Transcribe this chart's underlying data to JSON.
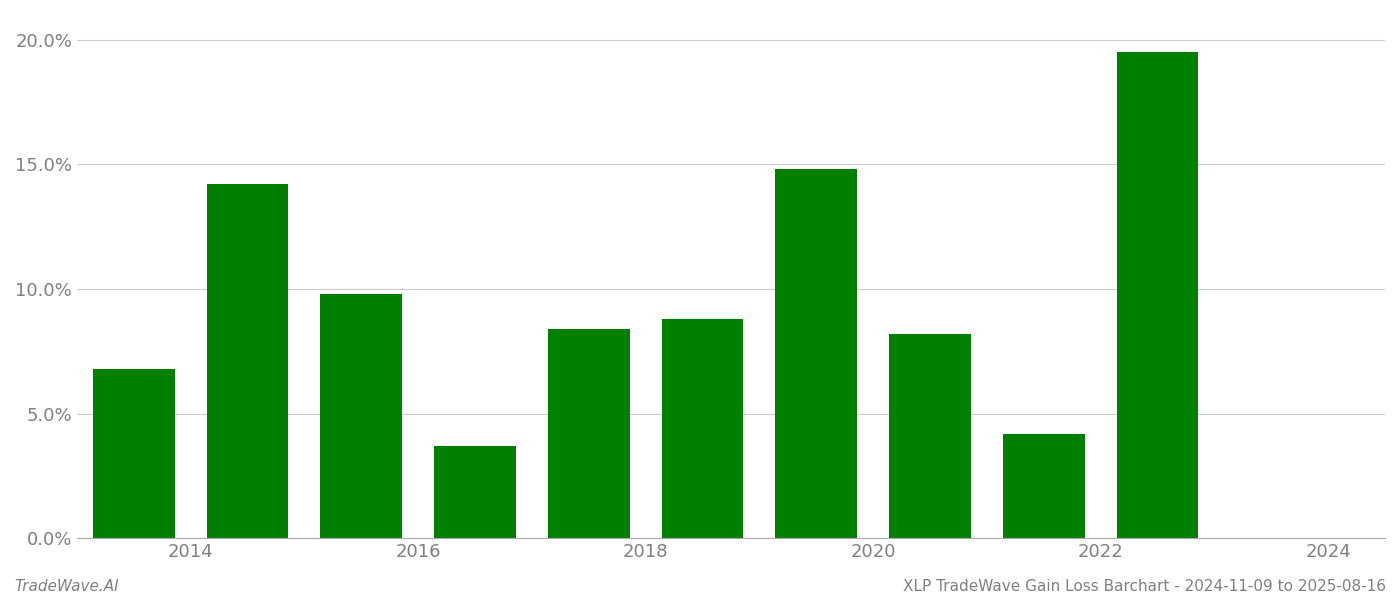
{
  "bar_positions": [
    2013.5,
    2014.5,
    2015.5,
    2016.5,
    2017.5,
    2018.5,
    2019.5,
    2020.5,
    2021.5,
    2022.5
  ],
  "values": [
    0.068,
    0.142,
    0.098,
    0.037,
    0.084,
    0.088,
    0.148,
    0.082,
    0.042,
    0.195
  ],
  "bar_color": "#008000",
  "background_color": "#ffffff",
  "ylim": [
    0,
    0.21
  ],
  "yticks": [
    0.0,
    0.05,
    0.1,
    0.15,
    0.2
  ],
  "xtick_positions": [
    2014,
    2016,
    2018,
    2020,
    2022,
    2024
  ],
  "xtick_labels": [
    "2014",
    "2016",
    "2018",
    "2020",
    "2022",
    "2024"
  ],
  "xlim": [
    2013.0,
    2024.5
  ],
  "bar_width": 0.72,
  "grid_color": "#cccccc",
  "axis_label_color": "#808080",
  "footer_left": "TradeWave.AI",
  "footer_right": "XLP TradeWave Gain Loss Barchart - 2024-11-09 to 2025-08-16",
  "footer_fontsize": 11,
  "tick_fontsize": 13,
  "spine_color": "#aaaaaa"
}
